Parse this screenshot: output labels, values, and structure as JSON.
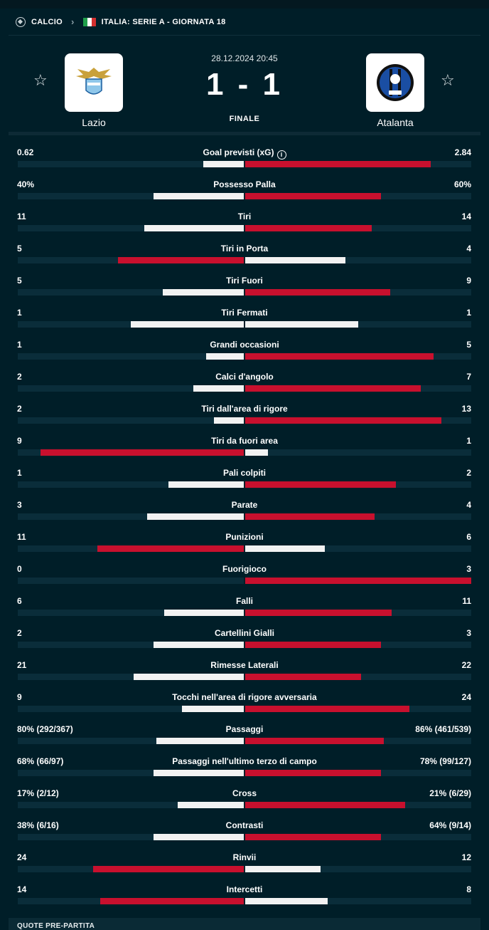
{
  "breadcrumb": {
    "sport": "CALCIO",
    "competition": "ITALIA: SERIE A - GIORNATA 18"
  },
  "match": {
    "datetime": "28.12.2024 20:45",
    "score": "1 - 1",
    "status": "FINALE",
    "home": {
      "name": "Lazio"
    },
    "away": {
      "name": "Atalanta"
    }
  },
  "colors": {
    "background": "#001e28",
    "accent": "#c8102e",
    "loser_bar": "#f2f2f2",
    "track": "#0a2d3a"
  },
  "stats": [
    {
      "label": "Goal previsti (xG)",
      "home": "0.62",
      "away": "2.84",
      "hv": 0.62,
      "av": 2.84,
      "info": true
    },
    {
      "label": "Possesso Palla",
      "home": "40%",
      "away": "60%",
      "hv": 40,
      "av": 60
    },
    {
      "label": "Tiri",
      "home": "11",
      "away": "14",
      "hv": 11,
      "av": 14
    },
    {
      "label": "Tiri in Porta",
      "home": "5",
      "away": "4",
      "hv": 5,
      "av": 4
    },
    {
      "label": "Tiri Fuori",
      "home": "5",
      "away": "9",
      "hv": 5,
      "av": 9
    },
    {
      "label": "Tiri Fermati",
      "home": "1",
      "away": "1",
      "hv": 1,
      "av": 1
    },
    {
      "label": "Grandi occasioni",
      "home": "1",
      "away": "5",
      "hv": 1,
      "av": 5
    },
    {
      "label": "Calci d'angolo",
      "home": "2",
      "away": "7",
      "hv": 2,
      "av": 7
    },
    {
      "label": "Tiri dall'area di rigore",
      "home": "2",
      "away": "13",
      "hv": 2,
      "av": 13
    },
    {
      "label": "Tiri da fuori area",
      "home": "9",
      "away": "1",
      "hv": 9,
      "av": 1
    },
    {
      "label": "Pali colpiti",
      "home": "1",
      "away": "2",
      "hv": 1,
      "av": 2
    },
    {
      "label": "Parate",
      "home": "3",
      "away": "4",
      "hv": 3,
      "av": 4
    },
    {
      "label": "Punizioni",
      "home": "11",
      "away": "6",
      "hv": 11,
      "av": 6
    },
    {
      "label": "Fuorigioco",
      "home": "0",
      "away": "3",
      "hv": 0,
      "av": 3
    },
    {
      "label": "Falli",
      "home": "6",
      "away": "11",
      "hv": 6,
      "av": 11
    },
    {
      "label": "Cartellini Gialli",
      "home": "2",
      "away": "3",
      "hv": 2,
      "av": 3
    },
    {
      "label": "Rimesse Laterali",
      "home": "21",
      "away": "22",
      "hv": 21,
      "av": 22
    },
    {
      "label": "Tocchi nell'area di rigore avversaria",
      "home": "9",
      "away": "24",
      "hv": 9,
      "av": 24
    },
    {
      "label": "Passaggi",
      "home": "80% (292/367)",
      "away": "86% (461/539)",
      "hv": 292,
      "av": 461
    },
    {
      "label": "Passaggi nell'ultimo terzo di campo",
      "home": "68% (66/97)",
      "away": "78% (99/127)",
      "hv": 66,
      "av": 99
    },
    {
      "label": "Cross",
      "home": "17% (2/12)",
      "away": "21% (6/29)",
      "hv": 12,
      "av": 29
    },
    {
      "label": "Contrasti",
      "home": "38% (6/16)",
      "away": "64% (9/14)",
      "hv": 6,
      "av": 9
    },
    {
      "label": "Rinvii",
      "home": "24",
      "away": "12",
      "hv": 24,
      "av": 12
    },
    {
      "label": "Intercetti",
      "home": "14",
      "away": "8",
      "hv": 14,
      "av": 8
    }
  ],
  "footer": {
    "title": "QUOTE PRE-PARTITA"
  }
}
